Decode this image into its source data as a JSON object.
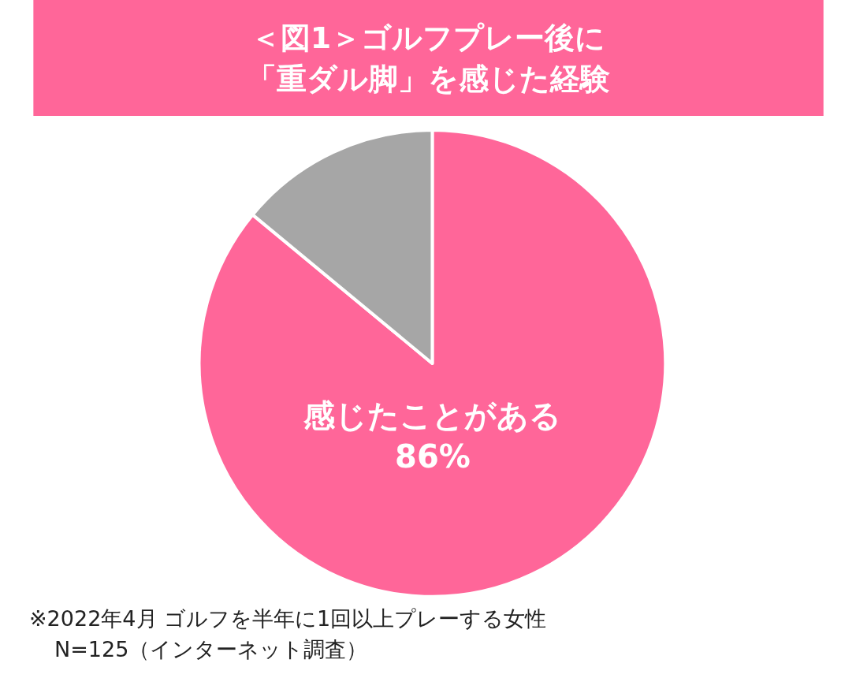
{
  "chart_data": {
    "type": "pie",
    "title": "＜図1＞ゴルフプレー後に",
    "subtitle": "「重ダル脚」を感じた経験",
    "categories": [
      "感じたことがある",
      null
    ],
    "values": [
      86,
      14
    ],
    "value_labels": [
      "86%",
      null
    ],
    "colors": [
      "#ff6699",
      "#a6a6a6"
    ],
    "legend": false,
    "annotations": [
      "※2022年4月 ゴルフを半年に1回以上プレーする女性",
      "N=125（インターネット調査）"
    ]
  }
}
